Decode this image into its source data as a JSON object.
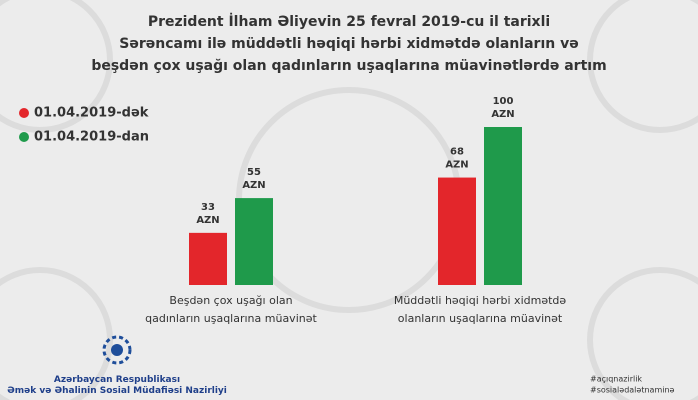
{
  "chart_data": {
    "type": "bar",
    "title": "Prezident İlham Əliyevin 25 fevral 2019-cu il tarixli\nSərəncamı ilə müddətli həqiqi hərbi xidmətdə olanların və\nbeşdən çox uşağı olan qadınların uşaqlarına müavinətlərdə artım",
    "categories": [
      "Beşdən çox uşağı olan\nqadınların uşaqlarına müavinət",
      "Müddətli həqiqi hərbi xidmətdə\nolanların uşaqlarına müavinət"
    ],
    "series": [
      {
        "name": "01.04.2019-dək",
        "color": "#e3262b",
        "values": [
          33,
          68
        ],
        "value_labels": [
          "33\nAZN",
          "68\nAZN"
        ]
      },
      {
        "name": "01.04.2019-dan",
        "color": "#1f9a4b",
        "values": [
          55,
          100
        ],
        "value_labels": [
          "55\nAZN",
          "100\nAZN"
        ]
      }
    ],
    "legend": "top-left"
  },
  "footer": {
    "organization": "Azərbaycan Respublikası\nƏmək və Əhalinin Sosial Müdafiəsi Nazirliyi",
    "hashtags": [
      "#açıqnazirlik",
      "#sosialədalətnaminə"
    ]
  }
}
